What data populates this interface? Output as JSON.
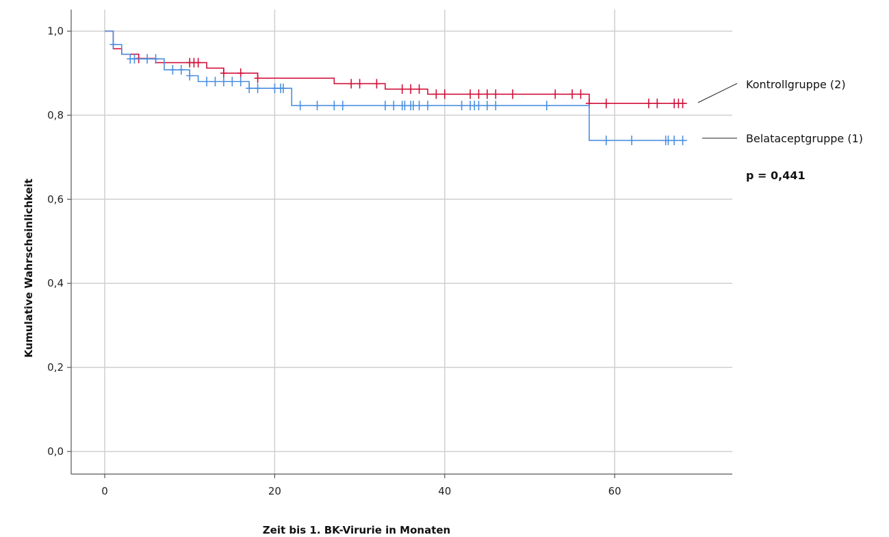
{
  "chart_data": {
    "type": "line",
    "subtype": "kaplan-meier",
    "title": "",
    "xlabel": "Zeit bis 1. BK-Virurie in Monaten",
    "ylabel": "Kumulative Wahrscheinlichkeit",
    "xlim": [
      -4,
      74
    ],
    "ylim": [
      -0.05,
      1.05
    ],
    "x_ticks": [
      0,
      20,
      40,
      60
    ],
    "x_tick_labels": [
      "0",
      "20",
      "40",
      "60"
    ],
    "y_ticks": [
      0.0,
      0.2,
      0.4,
      0.6,
      0.8,
      1.0
    ],
    "y_tick_labels": [
      "0,0",
      "0,2",
      "0,4",
      "0,6",
      "0,8",
      "1,0"
    ],
    "grid": true,
    "legend_placement": "right",
    "p_value_label": "p = 0,441",
    "series": [
      {
        "name": "Kontrollgruppe (2)",
        "color": "#d0103a",
        "steps": [
          [
            0,
            1.0
          ],
          [
            1,
            0.958
          ],
          [
            2,
            0.945
          ],
          [
            4,
            0.935
          ],
          [
            6,
            0.925
          ],
          [
            12,
            0.912
          ],
          [
            14,
            0.9
          ],
          [
            18,
            0.888
          ],
          [
            27,
            0.875
          ],
          [
            33,
            0.862
          ],
          [
            38,
            0.85
          ],
          [
            57,
            0.828
          ],
          [
            68.5,
            0.828
          ]
        ],
        "censored": [
          [
            4,
            0.935
          ],
          [
            10,
            0.925
          ],
          [
            10.5,
            0.925
          ],
          [
            11,
            0.925
          ],
          [
            14,
            0.9
          ],
          [
            16,
            0.9
          ],
          [
            18,
            0.888
          ],
          [
            29,
            0.875
          ],
          [
            30,
            0.875
          ],
          [
            32,
            0.875
          ],
          [
            35,
            0.862
          ],
          [
            36,
            0.862
          ],
          [
            37,
            0.862
          ],
          [
            39,
            0.85
          ],
          [
            40,
            0.85
          ],
          [
            43,
            0.85
          ],
          [
            44,
            0.85
          ],
          [
            45,
            0.85
          ],
          [
            46,
            0.85
          ],
          [
            48,
            0.85
          ],
          [
            53,
            0.85
          ],
          [
            55,
            0.85
          ],
          [
            56,
            0.85
          ],
          [
            57,
            0.828
          ],
          [
            59,
            0.828
          ],
          [
            64,
            0.828
          ],
          [
            65,
            0.828
          ],
          [
            67,
            0.828
          ],
          [
            67.5,
            0.828
          ],
          [
            68,
            0.828
          ]
        ]
      },
      {
        "name": "Belataceptgruppe (1)",
        "color": "#4a8fe0",
        "steps": [
          [
            0,
            1.0
          ],
          [
            1,
            0.968
          ],
          [
            2,
            0.945
          ],
          [
            3,
            0.934
          ],
          [
            7,
            0.908
          ],
          [
            10,
            0.894
          ],
          [
            11,
            0.88
          ],
          [
            17,
            0.864
          ],
          [
            22,
            0.823
          ],
          [
            57,
            0.74
          ],
          [
            68.5,
            0.74
          ]
        ],
        "censored": [
          [
            1,
            0.968
          ],
          [
            3,
            0.934
          ],
          [
            3.5,
            0.934
          ],
          [
            5,
            0.934
          ],
          [
            6,
            0.934
          ],
          [
            8,
            0.908
          ],
          [
            9,
            0.908
          ],
          [
            10,
            0.894
          ],
          [
            12,
            0.88
          ],
          [
            13,
            0.88
          ],
          [
            14,
            0.88
          ],
          [
            15,
            0.88
          ],
          [
            16,
            0.88
          ],
          [
            17,
            0.864
          ],
          [
            18,
            0.864
          ],
          [
            20,
            0.864
          ],
          [
            20.7,
            0.864
          ],
          [
            21,
            0.864
          ],
          [
            23,
            0.823
          ],
          [
            25,
            0.823
          ],
          [
            27,
            0.823
          ],
          [
            28,
            0.823
          ],
          [
            33,
            0.823
          ],
          [
            34,
            0.823
          ],
          [
            35,
            0.823
          ],
          [
            35.3,
            0.823
          ],
          [
            36,
            0.823
          ],
          [
            36.3,
            0.823
          ],
          [
            37,
            0.823
          ],
          [
            38,
            0.823
          ],
          [
            42,
            0.823
          ],
          [
            43,
            0.823
          ],
          [
            43.5,
            0.823
          ],
          [
            44,
            0.823
          ],
          [
            45,
            0.823
          ],
          [
            46,
            0.823
          ],
          [
            52,
            0.823
          ],
          [
            59,
            0.74
          ],
          [
            62,
            0.74
          ],
          [
            66,
            0.74
          ],
          [
            66.3,
            0.74
          ],
          [
            67,
            0.74
          ],
          [
            68,
            0.74
          ]
        ]
      }
    ]
  }
}
